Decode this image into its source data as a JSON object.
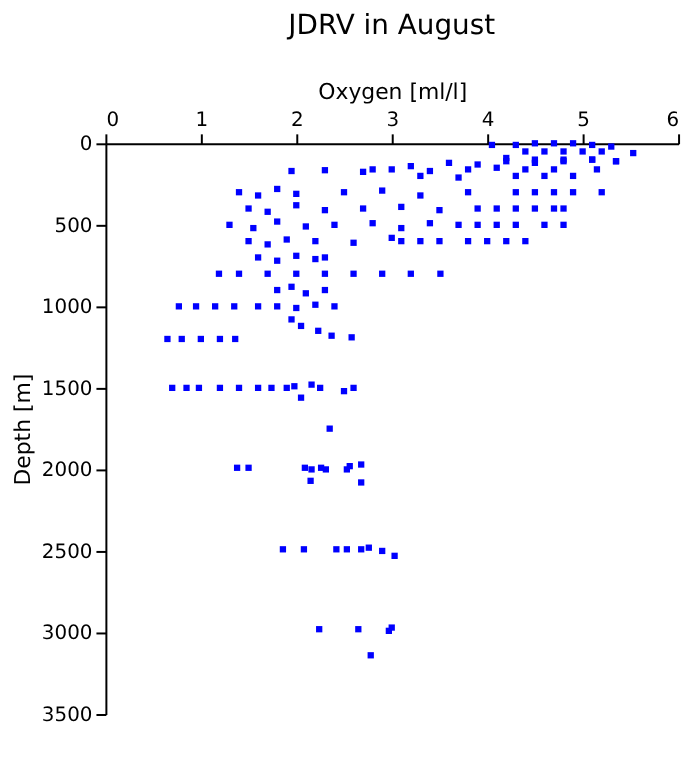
{
  "chart_data": {
    "type": "scatter",
    "title": "JDRV in August",
    "xlabel": "Oxygen [ml/l]",
    "ylabel": "Depth [m]",
    "xlim": [
      0,
      6
    ],
    "xticks": [
      0,
      1,
      2,
      3,
      4,
      5,
      6
    ],
    "ylim": [
      3500,
      0
    ],
    "yticks": [
      0,
      500,
      1000,
      1500,
      2000,
      2500,
      3000,
      3500
    ],
    "grid": false,
    "marker": "square",
    "series": [
      {
        "color": "#0000ff",
        "x": [
          4.05,
          4.3,
          4.5,
          4.7,
          4.9,
          5.1,
          5.3,
          4.4,
          4.6,
          4.8,
          5.0,
          5.2,
          5.53,
          4.2,
          4.5,
          4.8,
          5.1,
          5.35,
          2.8,
          3.2,
          3.6,
          3.9,
          4.2,
          4.5,
          4.8,
          5.1,
          5.35,
          1.95,
          2.3,
          2.7,
          3.0,
          3.4,
          3.8,
          4.1,
          4.4,
          4.7,
          5.15,
          3.3,
          3.7,
          4.3,
          4.6,
          4.9,
          1.4,
          1.6,
          1.8,
          2.0,
          2.5,
          2.9,
          3.3,
          3.8,
          4.3,
          4.5,
          4.7,
          4.9,
          5.2,
          1.5,
          1.7,
          2.0,
          2.3,
          2.7,
          3.1,
          3.5,
          3.9,
          4.1,
          4.3,
          4.5,
          4.7,
          4.8,
          1.3,
          1.55,
          1.8,
          2.1,
          2.4,
          2.8,
          3.1,
          3.4,
          3.7,
          3.9,
          4.1,
          4.3,
          4.6,
          4.8,
          1.5,
          1.7,
          1.9,
          2.2,
          2.6,
          3.0,
          3.1,
          3.3,
          3.5,
          3.8,
          4.0,
          4.2,
          4.4,
          1.6,
          1.8,
          2.0,
          2.2,
          2.3,
          1.19,
          1.4,
          1.7,
          2.0,
          2.3,
          2.6,
          2.9,
          3.2,
          3.51,
          1.8,
          1.95,
          2.1,
          2.3,
          0.77,
          0.95,
          1.15,
          1.35,
          1.6,
          1.8,
          2.0,
          2.2,
          2.4,
          1.95,
          2.05,
          2.23,
          2.37,
          2.58,
          0.65,
          0.8,
          1.0,
          1.2,
          1.36,
          0.7,
          0.85,
          0.98,
          1.2,
          1.4,
          1.6,
          1.74,
          1.9,
          1.98,
          2.16,
          2.25,
          2.5,
          2.6,
          2.05,
          2.35,
          1.38,
          1.5,
          2.09,
          2.16,
          2.26,
          2.31,
          2.53,
          2.56,
          2.68,
          2.15,
          2.68,
          1.86,
          2.08,
          2.42,
          2.53,
          2.68,
          2.76,
          2.9,
          3.03,
          2.24,
          2.65,
          2.97,
          3.0,
          2.78
        ],
        "values": [
          10,
          10,
          0,
          0,
          0,
          10,
          20,
          50,
          50,
          50,
          50,
          50,
          60,
          90,
          100,
          100,
          100,
          110,
          160,
          140,
          120,
          130,
          110,
          120,
          110,
          100,
          110,
          170,
          165,
          175,
          160,
          170,
          160,
          150,
          160,
          160,
          160,
          200,
          210,
          200,
          200,
          200,
          300,
          320,
          280,
          310,
          300,
          290,
          320,
          300,
          300,
          300,
          300,
          300,
          300,
          400,
          420,
          380,
          410,
          400,
          390,
          410,
          400,
          400,
          400,
          400,
          400,
          400,
          500,
          520,
          480,
          510,
          500,
          490,
          520,
          490,
          500,
          500,
          500,
          500,
          500,
          500,
          600,
          620,
          590,
          600,
          610,
          580,
          600,
          600,
          600,
          600,
          600,
          600,
          600,
          700,
          720,
          690,
          710,
          700,
          800,
          800,
          800,
          800,
          800,
          800,
          800,
          800,
          800,
          900,
          880,
          920,
          900,
          1000,
          1000,
          1000,
          1000,
          1000,
          1000,
          1010,
          990,
          1000,
          1080,
          1120,
          1150,
          1180,
          1190,
          1200,
          1200,
          1200,
          1200,
          1200,
          1500,
          1500,
          1500,
          1500,
          1500,
          1500,
          1500,
          1500,
          1490,
          1480,
          1500,
          1520,
          1500,
          1560,
          1750,
          1990,
          1990,
          1990,
          2000,
          1990,
          2000,
          2000,
          1980,
          1970,
          2070,
          2080,
          2490,
          2490,
          2490,
          2490,
          2490,
          2480,
          2500,
          2530,
          2980,
          2980,
          2990,
          2970,
          3140
        ]
      }
    ]
  }
}
